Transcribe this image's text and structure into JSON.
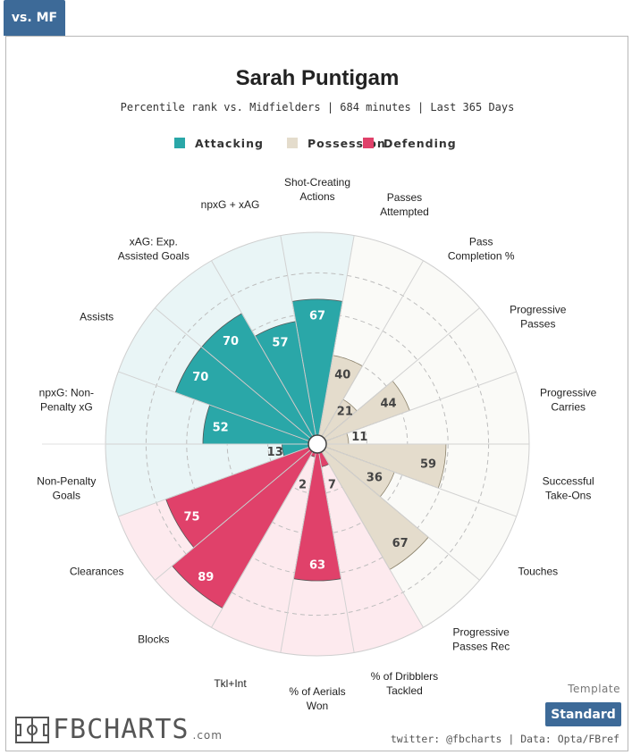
{
  "tab": {
    "label": "vs. MF"
  },
  "template": {
    "label": "Template",
    "button": "Standard"
  },
  "logo": {
    "word": "FBCHARTS",
    "suffix": ".com"
  },
  "footer": {
    "credit": "twitter: @fbcharts | Data: Opta/FBref"
  },
  "colors": {
    "attacking": "#2aa7a8",
    "possession": "#e4dccc",
    "defending": "#e0416a",
    "attacking_bg": "#e9f5f6",
    "possession_bg": "#fafaf7",
    "defending_bg": "#fdeaee"
  },
  "chart_data": {
    "type": "radar-bar",
    "title": "Sarah Puntigam",
    "subtitle": "Percentile rank vs. Midfielders | 684 minutes | Last 365 Days",
    "rlim": [
      0,
      100
    ],
    "legend": [
      {
        "name": "Attacking",
        "key": "attacking"
      },
      {
        "name": "Possession",
        "key": "possession"
      },
      {
        "name": "Defending",
        "key": "defending"
      }
    ],
    "categories": [
      {
        "label": [
          "Shot-Creating",
          "Actions"
        ],
        "value": 67,
        "group": "attacking"
      },
      {
        "label": [
          "Passes",
          "Attempted"
        ],
        "value": 40,
        "group": "possession"
      },
      {
        "label": [
          "Pass",
          "Completion %"
        ],
        "value": 21,
        "group": "possession"
      },
      {
        "label": [
          "Progressive",
          "Passes"
        ],
        "value": 44,
        "group": "possession"
      },
      {
        "label": [
          "Progressive",
          "Carries"
        ],
        "value": 11,
        "group": "possession"
      },
      {
        "label": [
          "Successful",
          "Take-Ons"
        ],
        "value": 59,
        "group": "possession"
      },
      {
        "label": [
          "Touches"
        ],
        "value": 36,
        "group": "possession"
      },
      {
        "label": [
          "Progressive",
          "Passes Rec"
        ],
        "value": 67,
        "group": "possession"
      },
      {
        "label": [
          "% of Dribblers",
          "Tackled"
        ],
        "value": 7,
        "group": "defending"
      },
      {
        "label": [
          "% of Aerials",
          "Won"
        ],
        "value": 63,
        "group": "defending"
      },
      {
        "label": [
          "Tkl+Int"
        ],
        "value": 2,
        "group": "defending"
      },
      {
        "label": [
          "Blocks"
        ],
        "value": 89,
        "group": "defending"
      },
      {
        "label": [
          "Clearances"
        ],
        "value": 75,
        "group": "defending"
      },
      {
        "label": [
          "Non-Penalty",
          "Goals"
        ],
        "value": 13,
        "group": "attacking"
      },
      {
        "label": [
          "npxG: Non-",
          "Penalty xG"
        ],
        "value": 52,
        "group": "attacking"
      },
      {
        "label": [
          "Assists"
        ],
        "value": 70,
        "group": "attacking"
      },
      {
        "label": [
          "xAG: Exp.",
          "Assisted Goals"
        ],
        "value": 70,
        "group": "attacking"
      },
      {
        "label": [
          "npxG + xAG"
        ],
        "value": 57,
        "group": "attacking"
      }
    ]
  }
}
